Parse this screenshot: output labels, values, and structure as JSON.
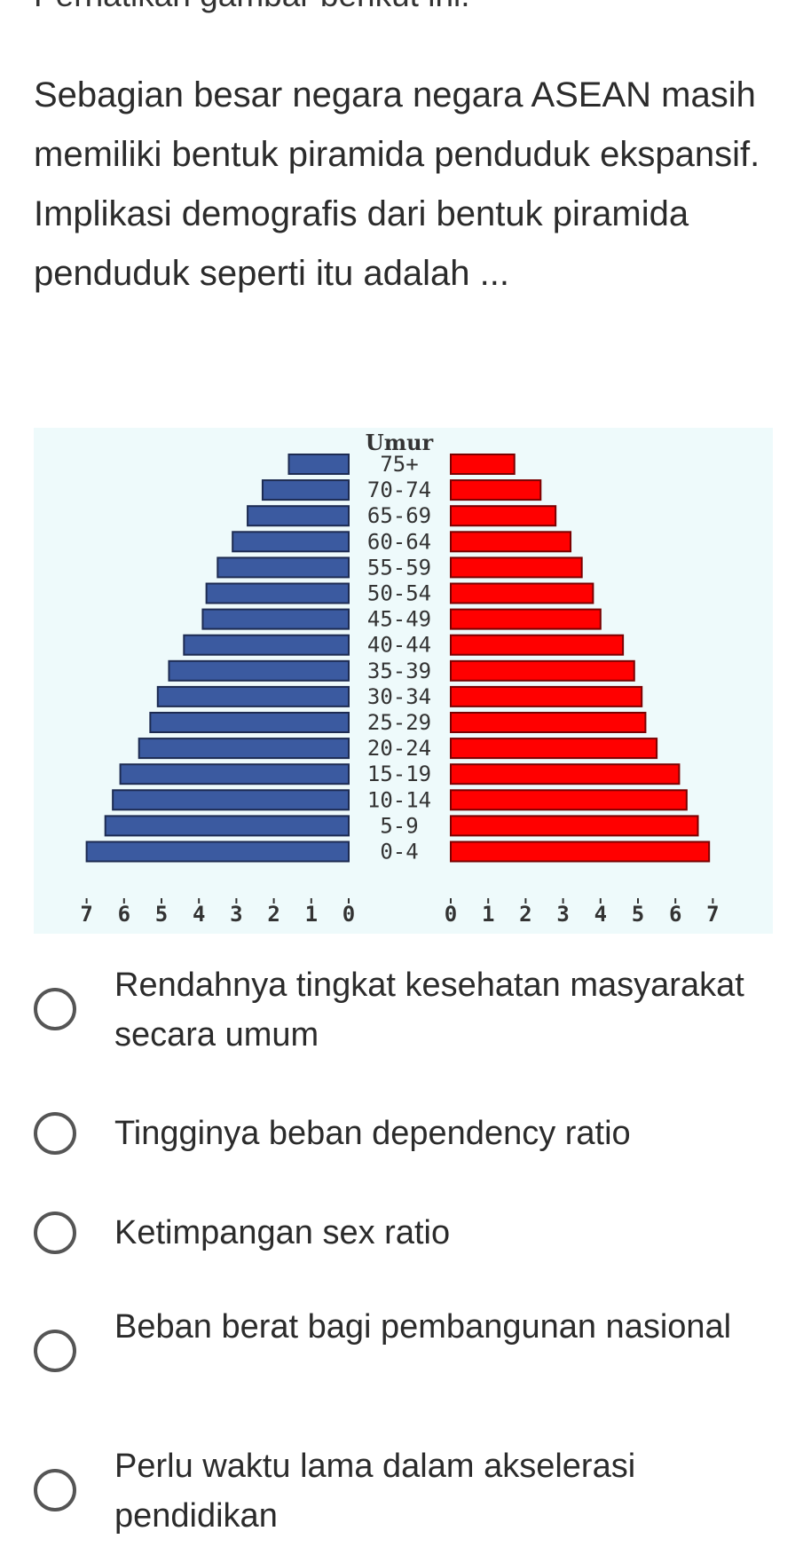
{
  "header": {
    "cut_text": "Perhatikan gambar berikut ini."
  },
  "question": {
    "text": "Sebagian besar negara negara ASEAN masih memiliki bentuk piramida penduduk ekspansif. Implikasi demografis dari bentuk piramida penduduk seperti itu adalah ..."
  },
  "chart_data": {
    "type": "bar",
    "subtype": "population-pyramid",
    "title": "Umur",
    "categories": [
      "75+",
      "70-74",
      "65-69",
      "60-64",
      "55-59",
      "50-54",
      "45-49",
      "40-44",
      "35-39",
      "30-34",
      "25-29",
      "20-24",
      "15-19",
      "10-14",
      "5-9",
      "0-4"
    ],
    "series": [
      {
        "values": [
          1.6,
          2.3,
          2.7,
          3.1,
          3.5,
          3.8,
          3.9,
          4.4,
          4.8,
          5.1,
          5.3,
          5.6,
          6.1,
          6.3,
          6.5,
          7.0
        ],
        "color": "#3b5aa0"
      },
      {
        "values": [
          1.7,
          2.4,
          2.8,
          3.2,
          3.5,
          3.8,
          4.0,
          4.6,
          4.9,
          5.1,
          5.2,
          5.5,
          6.1,
          6.3,
          6.6,
          6.9
        ],
        "color": "#ff0000"
      }
    ],
    "xticks_left": [
      "7",
      "6",
      "5",
      "4",
      "3",
      "2",
      "1",
      "0"
    ],
    "xticks_right": [
      "0",
      "1",
      "2",
      "3",
      "4",
      "5",
      "6",
      "7"
    ],
    "xlim": [
      0,
      7
    ],
    "grid": false,
    "background": "#eefafb"
  },
  "options": [
    {
      "label": "Rendahnya tingkat kesehatan masyarakat secara umum",
      "selected": false
    },
    {
      "label": "Tingginya beban dependency ratio",
      "selected": false
    },
    {
      "label": "Ketimpangan sex ratio",
      "selected": false
    },
    {
      "label": "Beban berat bagi pembangunan nasional",
      "selected": false
    },
    {
      "label": "Perlu waktu lama dalam akselerasi pendidikan",
      "selected": false
    }
  ],
  "icons": {
    "radio": "radio-button-icon"
  },
  "colors": {
    "male_bar": "#3b5aa0",
    "female_bar": "#ff0000",
    "chart_bg": "#eefafb",
    "radio_border": "#555555"
  }
}
